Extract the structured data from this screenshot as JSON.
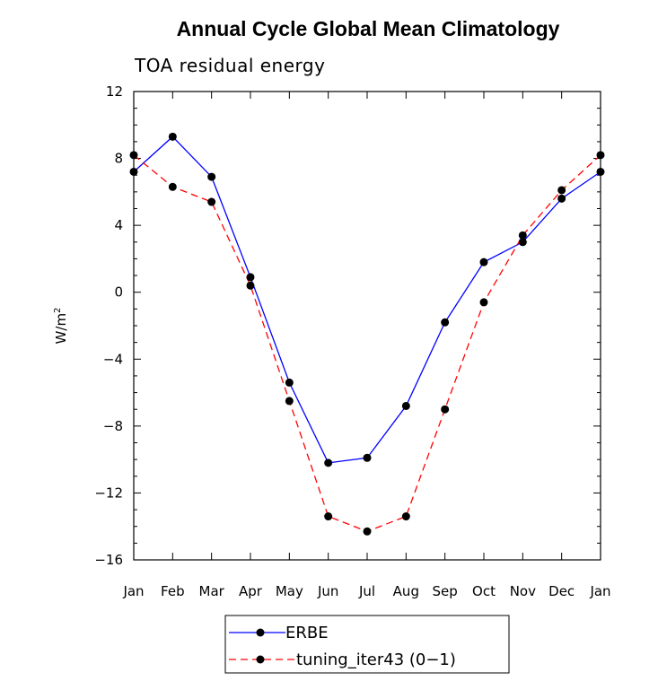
{
  "chart_data": {
    "type": "line",
    "title": "Annual Cycle Global Mean Climatology",
    "subtitle": "TOA residual energy",
    "xlabel": "",
    "ylabel": "W/m",
    "ylabel_superscript": "2",
    "ylim": [
      -16,
      12
    ],
    "yticks": [
      "12",
      "8",
      "4",
      "0",
      "−4",
      "−8",
      "−12",
      "−16"
    ],
    "ytick_values": [
      12,
      8,
      4,
      0,
      -4,
      -8,
      -12,
      -16
    ],
    "categories": [
      "Jan",
      "Feb",
      "Mar",
      "Apr",
      "May",
      "Jun",
      "Jul",
      "Aug",
      "Sep",
      "Oct",
      "Nov",
      "Dec",
      "Jan"
    ],
    "grid": false,
    "legend_position": "bottom-center",
    "series": [
      {
        "name": "ERBE",
        "color": "#0000ff",
        "dash": "solid",
        "values": [
          7.2,
          9.3,
          6.9,
          0.9,
          -5.4,
          -10.2,
          -9.9,
          -6.8,
          -1.8,
          1.8,
          3.0,
          5.6,
          7.2
        ]
      },
      {
        "name": "tuning_iter43 (0−1)",
        "color": "#ff0000",
        "dash": "dashed",
        "values": [
          8.2,
          6.3,
          5.4,
          0.4,
          -6.5,
          -13.4,
          -14.3,
          -13.4,
          -7.0,
          -0.6,
          3.4,
          6.1,
          8.2
        ]
      }
    ]
  }
}
